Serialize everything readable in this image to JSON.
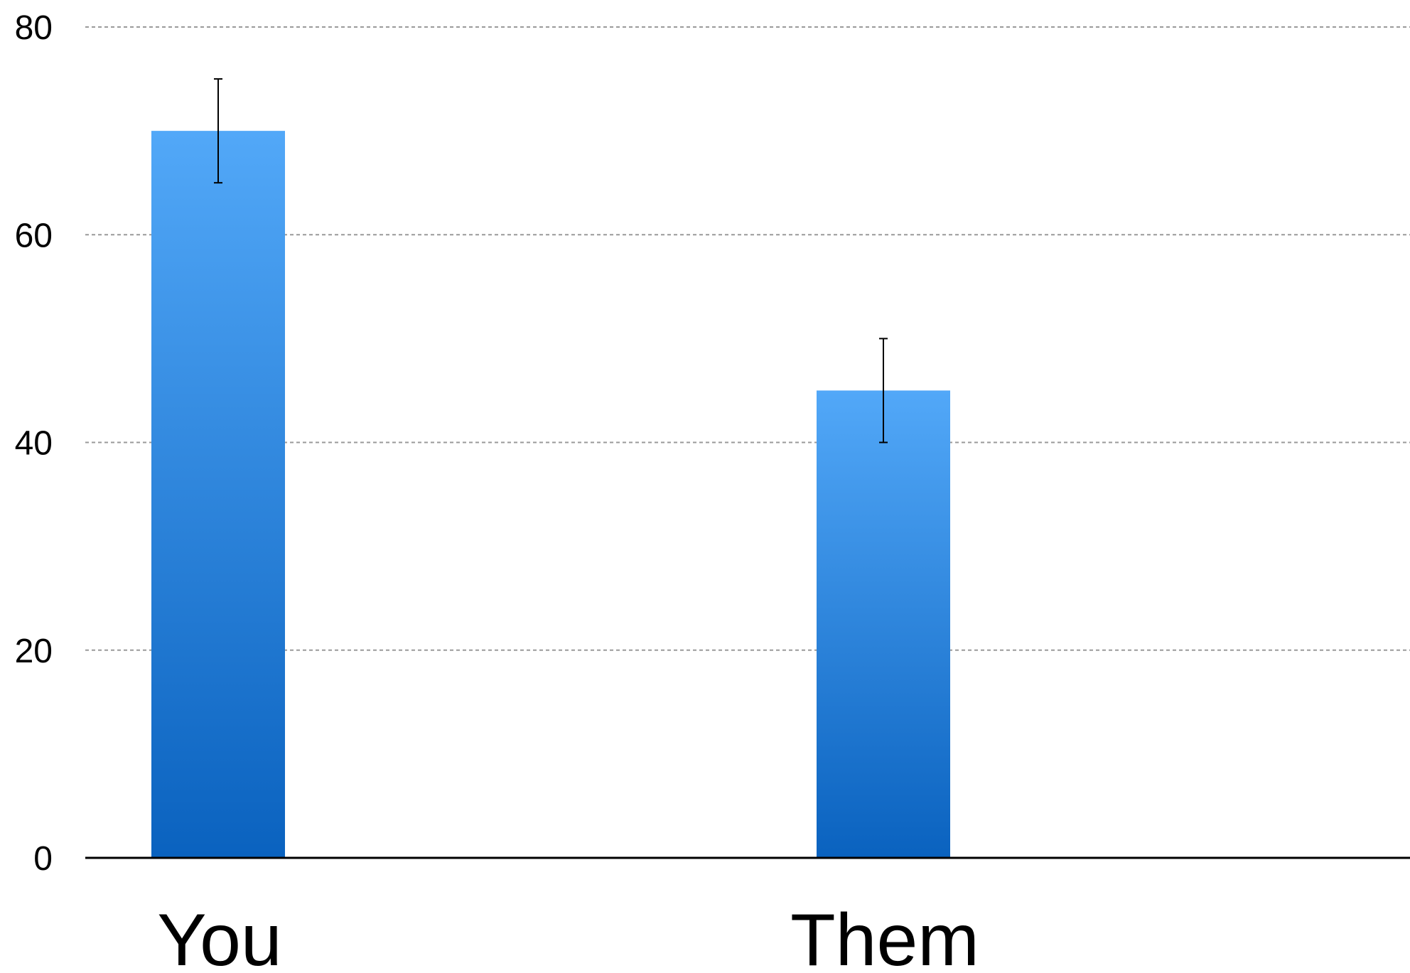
{
  "chart_data": {
    "type": "bar",
    "categories": [
      "You",
      "Them"
    ],
    "values": [
      70,
      45
    ],
    "error": [
      5,
      5
    ],
    "ylim": [
      0,
      80
    ],
    "yticks": [
      0,
      20,
      40,
      60,
      80
    ],
    "title": "",
    "xlabel": "",
    "ylabel": "",
    "grid": true,
    "colors": {
      "bar_top": "#52A8F8",
      "bar_bottom": "#0A62BF",
      "grid": "#9A9A9A",
      "axis": "#000000",
      "error_bar": "#000000"
    }
  }
}
